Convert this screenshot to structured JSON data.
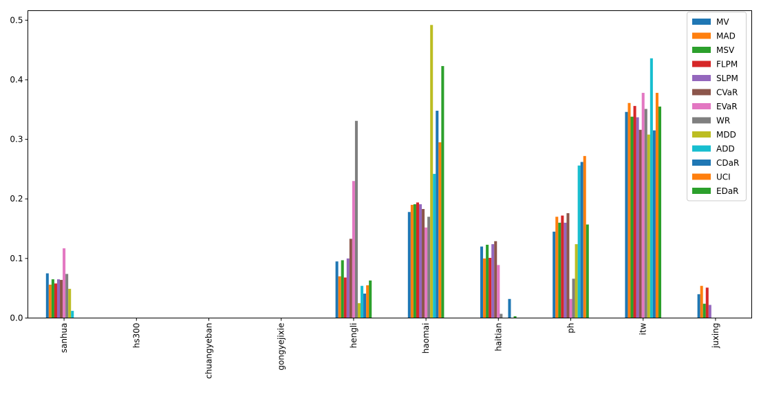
{
  "chart_data": {
    "type": "bar",
    "title": "",
    "xlabel": "",
    "ylabel": "",
    "ylim": [
      0,
      0.516
    ],
    "yticks": [
      "0.0",
      "0.1",
      "0.2",
      "0.3",
      "0.4",
      "0.5"
    ],
    "grid": false,
    "legend_position": "top-right",
    "categories": [
      "sanhua",
      "hs300",
      "chuangyeban",
      "gongyejixie",
      "hengli",
      "haomai",
      "haitian",
      "ph",
      "itw",
      "juxing"
    ],
    "series": [
      {
        "name": "MV",
        "color": "#1f77b4",
        "values": [
          0.075,
          0,
          0,
          0,
          0.095,
          0.178,
          0.12,
          0.145,
          0.346,
          0.04
        ]
      },
      {
        "name": "MAD",
        "color": "#ff7f0e",
        "values": [
          0.056,
          0,
          0,
          0,
          0.07,
          0.19,
          0.1,
          0.17,
          0.361,
          0.054
        ]
      },
      {
        "name": "MSV",
        "color": "#2ca02c",
        "values": [
          0.065,
          0,
          0,
          0,
          0.097,
          0.191,
          0.123,
          0.16,
          0.338,
          0.024
        ]
      },
      {
        "name": "FLPM",
        "color": "#d62728",
        "values": [
          0.058,
          0,
          0,
          0,
          0.068,
          0.194,
          0.101,
          0.172,
          0.356,
          0.051
        ]
      },
      {
        "name": "SLPM",
        "color": "#9467bd",
        "values": [
          0.065,
          0,
          0,
          0,
          0.1,
          0.191,
          0.124,
          0.16,
          0.337,
          0.022
        ]
      },
      {
        "name": "CVaR",
        "color": "#8c564b",
        "values": [
          0.064,
          0,
          0,
          0,
          0.133,
          0.183,
          0.129,
          0.176,
          0.316,
          0
        ]
      },
      {
        "name": "EVaR",
        "color": "#e377c2",
        "values": [
          0.117,
          0,
          0,
          0,
          0.23,
          0.152,
          0.089,
          0.032,
          0.378,
          0
        ]
      },
      {
        "name": "WR",
        "color": "#7f7f7f",
        "values": [
          0.074,
          0,
          0,
          0,
          0.331,
          0.17,
          0.007,
          0.066,
          0.351,
          0
        ]
      },
      {
        "name": "MDD",
        "color": "#bcbd22",
        "values": [
          0.049,
          0,
          0,
          0,
          0.025,
          0.492,
          0,
          0.124,
          0.308,
          0
        ]
      },
      {
        "name": "ADD",
        "color": "#17becf",
        "values": [
          0.012,
          0,
          0,
          0,
          0.054,
          0.242,
          0,
          0.256,
          0.436,
          0
        ]
      },
      {
        "name": "CDaR",
        "color": "#1f77b4",
        "values": [
          0,
          0,
          0,
          0,
          0.041,
          0.348,
          0.032,
          0.262,
          0.315,
          0
        ]
      },
      {
        "name": "UCI",
        "color": "#ff7f0e",
        "values": [
          0,
          0,
          0,
          0,
          0.055,
          0.295,
          0,
          0.272,
          0.378,
          0
        ]
      },
      {
        "name": "EDaR",
        "color": "#2ca02c",
        "values": [
          0,
          0,
          0,
          0,
          0.063,
          0.423,
          0.003,
          0.157,
          0.355,
          0
        ]
      }
    ]
  }
}
